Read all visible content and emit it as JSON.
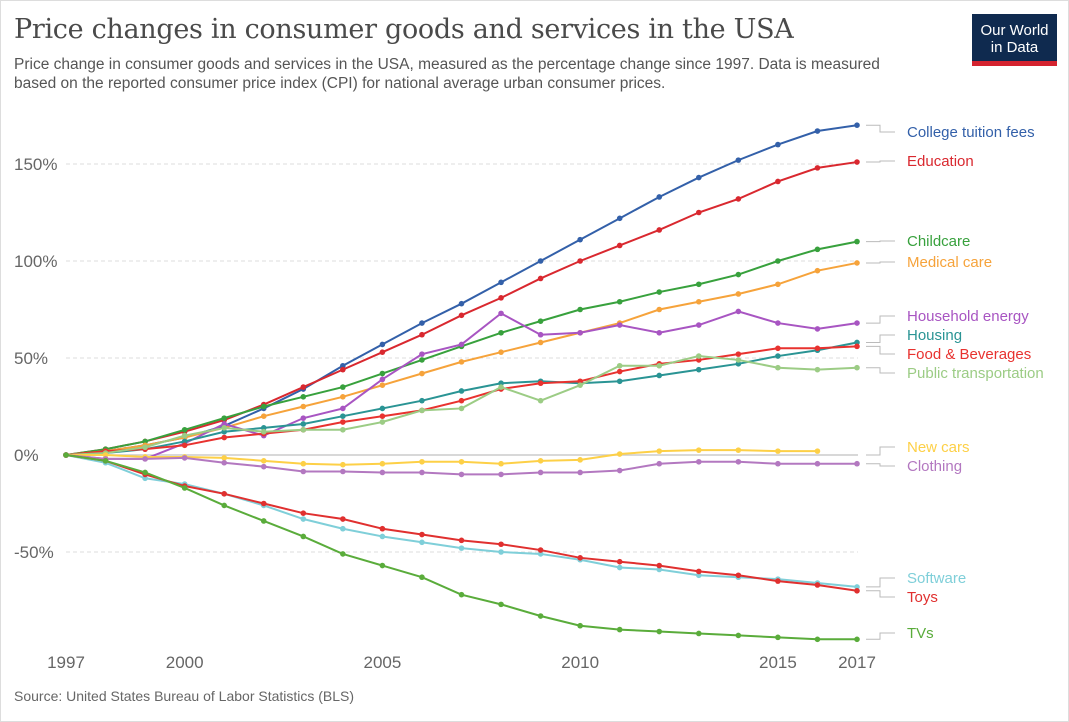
{
  "chart_data": {
    "type": "line",
    "title": "Price changes in consumer goods and services in the USA",
    "subtitle": "Price change in consumer goods and services in the USA, measured as the percentage change since 1997. Data is measured based on the reported consumer price index (CPI) for national average urban consumer prices.",
    "source": "Source: United States Bureau of Labor Statistics (BLS)",
    "logo": "Our World in Data",
    "xlabel": "",
    "ylabel": "",
    "ylim": [
      -100,
      175
    ],
    "xlim": [
      1997,
      2017
    ],
    "grid": true,
    "legend": "right (labels at line ends)",
    "x_ticks": [
      1997,
      2000,
      2005,
      2010,
      2015,
      2017
    ],
    "x_tick_labels": [
      "1997",
      "2000",
      "2005",
      "2010",
      "2015",
      "2017"
    ],
    "y_ticks": [
      -50,
      0,
      50,
      100,
      150
    ],
    "y_tick_labels": [
      "-50%",
      "0%",
      "50%",
      "100%",
      "150%"
    ],
    "x": [
      1997,
      1998,
      1999,
      2000,
      2001,
      2002,
      2003,
      2004,
      2005,
      2006,
      2007,
      2008,
      2009,
      2010,
      2011,
      2012,
      2013,
      2014,
      2015,
      2016,
      2017
    ],
    "series": [
      {
        "name": "College tuition fees",
        "color": "#3360a9",
        "values": [
          0,
          2,
          5,
          9,
          15,
          24,
          34,
          46,
          57,
          68,
          78,
          89,
          100,
          111,
          122,
          133,
          143,
          152,
          160,
          167,
          170
        ]
      },
      {
        "name": "Education",
        "color": "#d9282f",
        "values": [
          0,
          3,
          7,
          12,
          18,
          26,
          35,
          44,
          53,
          62,
          72,
          81,
          91,
          100,
          108,
          116,
          125,
          132,
          141,
          148,
          151
        ]
      },
      {
        "name": "Childcare",
        "color": "#38a13d",
        "values": [
          0,
          3,
          7,
          13,
          19,
          25,
          30,
          35,
          42,
          49,
          56,
          63,
          69,
          75,
          79,
          84,
          88,
          93,
          100,
          106,
          110
        ]
      },
      {
        "name": "Medical care",
        "color": "#f6a33b",
        "values": [
          0,
          2,
          5,
          9,
          14,
          20,
          25,
          30,
          36,
          42,
          48,
          53,
          58,
          63,
          68,
          75,
          79,
          83,
          88,
          95,
          99
        ]
      },
      {
        "name": "Household energy",
        "color": "#a855c2",
        "values": [
          0,
          -2,
          -2,
          6,
          16,
          10,
          19,
          24,
          39,
          52,
          57,
          73,
          62,
          63,
          67,
          63,
          67,
          74,
          68,
          65,
          68
        ]
      },
      {
        "name": "Housing",
        "color": "#2a9494",
        "values": [
          0,
          1,
          3,
          7,
          12,
          14,
          16,
          20,
          24,
          28,
          33,
          37,
          38,
          37,
          38,
          41,
          44,
          47,
          51,
          54,
          58
        ]
      },
      {
        "name": "Food & Beverages",
        "color": "#e8322f",
        "values": [
          0,
          2,
          3,
          5,
          9,
          11,
          13,
          17,
          20,
          23,
          28,
          34,
          37,
          38,
          43,
          47,
          49,
          52,
          55,
          55,
          56
        ]
      },
      {
        "name": "Public transportation",
        "color": "#9ccc85",
        "values": [
          0,
          1,
          4,
          10,
          14,
          12,
          13,
          13,
          17,
          23,
          24,
          35,
          28,
          36,
          46,
          46,
          51,
          49,
          45,
          44,
          45
        ]
      },
      {
        "name": "New cars",
        "color": "#fdd047",
        "values": [
          0,
          0,
          -1,
          -1,
          -1.5,
          -3,
          -4.5,
          -5,
          -4.5,
          -3.5,
          -3.5,
          -4.5,
          -3,
          -2.5,
          0.5,
          2,
          2.5,
          2.5,
          2,
          2,
          null
        ]
      },
      {
        "name": "Clothing",
        "color": "#b378c0",
        "values": [
          0,
          -2,
          -2,
          -1.5,
          -4,
          -6,
          -8.5,
          -8.5,
          -9,
          -9,
          -10,
          -10,
          -9,
          -9,
          -8,
          -4.5,
          -3.5,
          -3.5,
          -4.5,
          -4.5,
          -4.5
        ]
      },
      {
        "name": "Software",
        "color": "#7fcfd9",
        "values": [
          0,
          -4,
          -12,
          -15,
          -20,
          -26,
          -33,
          -38,
          -42,
          -45,
          -48,
          -50,
          -51,
          -54,
          -58,
          -59,
          -62,
          -63,
          -64,
          -66,
          -68
        ]
      },
      {
        "name": "Toys",
        "color": "#e0302f",
        "values": [
          0,
          -3,
          -10,
          -16,
          -20,
          -25,
          -30,
          -33,
          -38,
          -41,
          -44,
          -46,
          -49,
          -53,
          -55,
          -57,
          -60,
          -62,
          -65,
          -67,
          -70
        ]
      },
      {
        "name": "TVs",
        "color": "#5aac3b",
        "values": [
          0,
          -3,
          -9,
          -17,
          -26,
          -34,
          -42,
          -51,
          -57,
          -63,
          -72,
          -77,
          -83,
          -88,
          -90,
          -91,
          -92,
          -93,
          -94,
          -95,
          -95
        ]
      }
    ]
  }
}
